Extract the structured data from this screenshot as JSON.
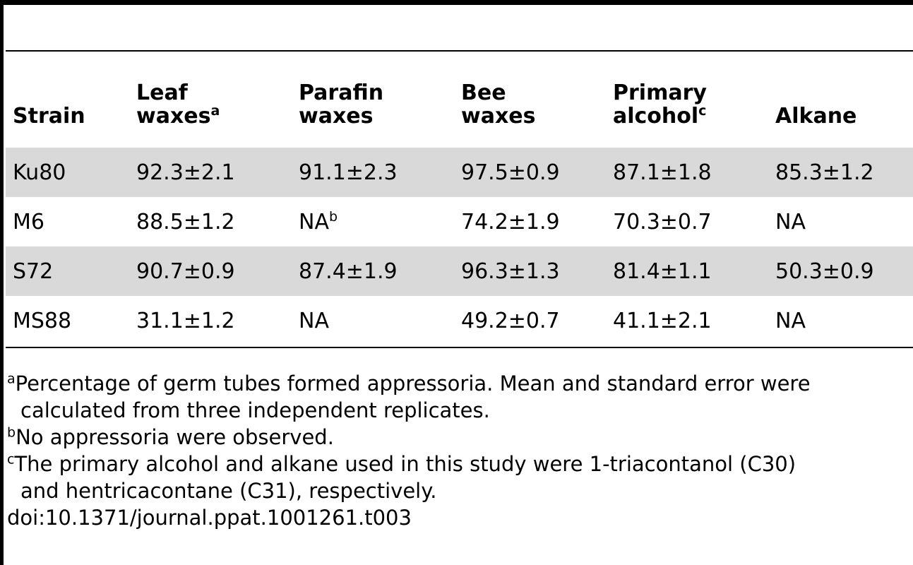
{
  "table": {
    "headers": [
      {
        "line1": "",
        "line2": "Strain",
        "sup": ""
      },
      {
        "line1": "Leaf",
        "line2": "waxes",
        "sup": "a"
      },
      {
        "line1": "Parafin",
        "line2": "waxes",
        "sup": ""
      },
      {
        "line1": "Bee",
        "line2": "waxes",
        "sup": ""
      },
      {
        "line1": "Primary",
        "line2": "alcohol",
        "sup": "c"
      },
      {
        "line1": "",
        "line2": "Alkane",
        "sup": ""
      }
    ],
    "rows": [
      {
        "shaded": true,
        "cells": [
          {
            "t": "Ku80"
          },
          {
            "t": "92.3±2.1"
          },
          {
            "t": "91.1±2.3"
          },
          {
            "t": "97.5±0.9"
          },
          {
            "t": "87.1±1.8"
          },
          {
            "t": "85.3±1.2"
          }
        ]
      },
      {
        "shaded": false,
        "cells": [
          {
            "t": "M6"
          },
          {
            "t": "88.5±1.2"
          },
          {
            "t": "NA",
            "sup": "b"
          },
          {
            "t": "74.2±1.9"
          },
          {
            "t": "70.3±0.7"
          },
          {
            "t": "NA"
          }
        ]
      },
      {
        "shaded": true,
        "cells": [
          {
            "t": "S72"
          },
          {
            "t": "90.7±0.9"
          },
          {
            "t": "87.4±1.9"
          },
          {
            "t": "96.3±1.3"
          },
          {
            "t": "81.4±1.1"
          },
          {
            "t": "50.3±0.9"
          }
        ]
      },
      {
        "shaded": false,
        "cells": [
          {
            "t": "MS88"
          },
          {
            "t": "31.1±1.2"
          },
          {
            "t": "NA"
          },
          {
            "t": "49.2±0.7"
          },
          {
            "t": "41.1±2.1"
          },
          {
            "t": "NA"
          }
        ]
      }
    ]
  },
  "footnotes": [
    {
      "mark": "a",
      "line1": "Percentage of germ tubes formed appressoria. Mean and standard error were",
      "line2": "calculated from three independent replicates."
    },
    {
      "mark": "b",
      "line1": "No appressoria were observed.",
      "line2": ""
    },
    {
      "mark": "c",
      "line1": "The primary alcohol and alkane used in this study were 1-triacontanol (C30)",
      "line2": "and hentricacontane (C31), respectively."
    }
  ],
  "doi": "doi:10.1371/journal.ppat.1001261.t003",
  "colors": {
    "shaded_row": "#d9d9d9",
    "rule": "#000000"
  }
}
